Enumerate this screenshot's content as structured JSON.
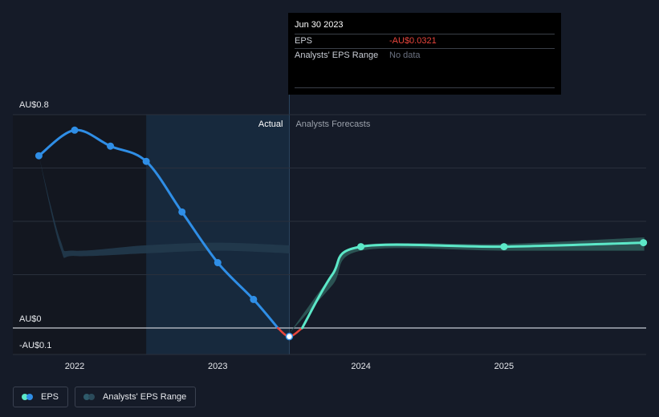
{
  "chart_data": {
    "type": "line",
    "title": "",
    "xlabel": "",
    "ylabel": "",
    "y_unit_prefix": "AU$",
    "ylim": [
      -0.1,
      0.8
    ],
    "y_tick_labels": [
      {
        "value": 0.8,
        "label": "AU$0.8"
      },
      {
        "value": 0,
        "label": "AU$0"
      },
      {
        "value": -0.1,
        "label": "-AU$0.1"
      }
    ],
    "xlim": [
      2021.6,
      2025.98
    ],
    "x_ticks": [
      {
        "value": 2022.0,
        "label": "2022"
      },
      {
        "value": 2023.0,
        "label": "2023"
      },
      {
        "value": 2024.0,
        "label": "2024"
      },
      {
        "value": 2025.0,
        "label": "2025"
      }
    ],
    "actual_start": 2022.5,
    "forecast_start": 2023.5,
    "series": [
      {
        "name": "EPS",
        "segment": "actual",
        "color": "#2f8ee6",
        "points": [
          {
            "x": 2021.75,
            "y": 0.646
          },
          {
            "x": 2022.0,
            "y": 0.742
          },
          {
            "x": 2022.25,
            "y": 0.682
          },
          {
            "x": 2022.5,
            "y": 0.625
          },
          {
            "x": 2022.75,
            "y": 0.435
          },
          {
            "x": 2023.0,
            "y": 0.245
          },
          {
            "x": 2023.25,
            "y": 0.107
          },
          {
            "x": 2023.5,
            "y": -0.0321
          }
        ]
      },
      {
        "name": "EPS",
        "segment": "forecast",
        "color": "#5ce8c8",
        "points": [
          {
            "x": 2023.5,
            "y": -0.0321
          },
          {
            "x": 2024.0,
            "y": 0.305
          },
          {
            "x": 2025.0,
            "y": 0.305
          },
          {
            "x": 2025.98,
            "y": 0.32
          }
        ]
      }
    ],
    "range_band": {
      "name": "Analysts' EPS Range",
      "historic": {
        "upper": [
          [
            2021.75,
            0.646
          ],
          [
            2021.9,
            0.33
          ],
          [
            2022.0,
            0.29
          ],
          [
            2022.5,
            0.31
          ],
          [
            2023.0,
            0.32
          ],
          [
            2023.5,
            0.31
          ]
        ],
        "lower": [
          [
            2021.75,
            0.646
          ],
          [
            2021.9,
            0.3
          ],
          [
            2022.0,
            0.27
          ],
          [
            2022.5,
            0.28
          ],
          [
            2023.0,
            0.29
          ],
          [
            2023.5,
            0.28
          ]
        ]
      },
      "forecast": {
        "upper": [
          [
            2023.5,
            -0.02
          ],
          [
            2023.8,
            0.2
          ],
          [
            2024.0,
            0.31
          ],
          [
            2025.0,
            0.315
          ],
          [
            2025.98,
            0.34
          ]
        ],
        "lower": [
          [
            2023.5,
            -0.02
          ],
          [
            2023.8,
            0.16
          ],
          [
            2024.0,
            0.29
          ],
          [
            2025.0,
            0.29
          ],
          [
            2025.98,
            0.29
          ]
        ]
      }
    },
    "zone_labels": {
      "actual": "Actual",
      "forecast": "Analysts Forecasts"
    },
    "legend": [
      {
        "label": "EPS",
        "colors": [
          "#5ce8c8",
          "#2f8ee6"
        ]
      },
      {
        "label": "Analysts' EPS Range",
        "colors": [
          "#2e5a6a",
          "#2a4a5a"
        ]
      }
    ]
  },
  "tooltip": {
    "date": "Jun 30 2023",
    "rows": [
      {
        "label": "EPS",
        "value": "-AU$0.0321"
      },
      {
        "label": "Analysts' EPS Range",
        "value": "No data"
      }
    ]
  },
  "colors": {
    "background": "#151b28",
    "grid": "#2a303c",
    "zero_line": "#c8ccd4",
    "negative": "#e8453c",
    "actual_band": "#17293d",
    "past_band": "#131720"
  }
}
